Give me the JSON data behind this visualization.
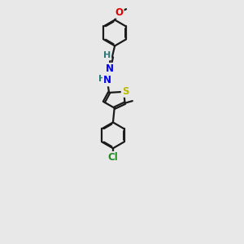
{
  "bg_color": "#e8e8e8",
  "bond_color": "#1a1a1a",
  "bond_width": 1.6,
  "dbo": 0.055,
  "atom_colors": {
    "N": "#0000ee",
    "O": "#dd0000",
    "S": "#bbbb00",
    "Cl": "#228822",
    "C": "#1a1a1a",
    "H": "#2a7a7a"
  },
  "font_size": 8.5,
  "fig_size": [
    3.0,
    3.0
  ],
  "dpi": 100
}
